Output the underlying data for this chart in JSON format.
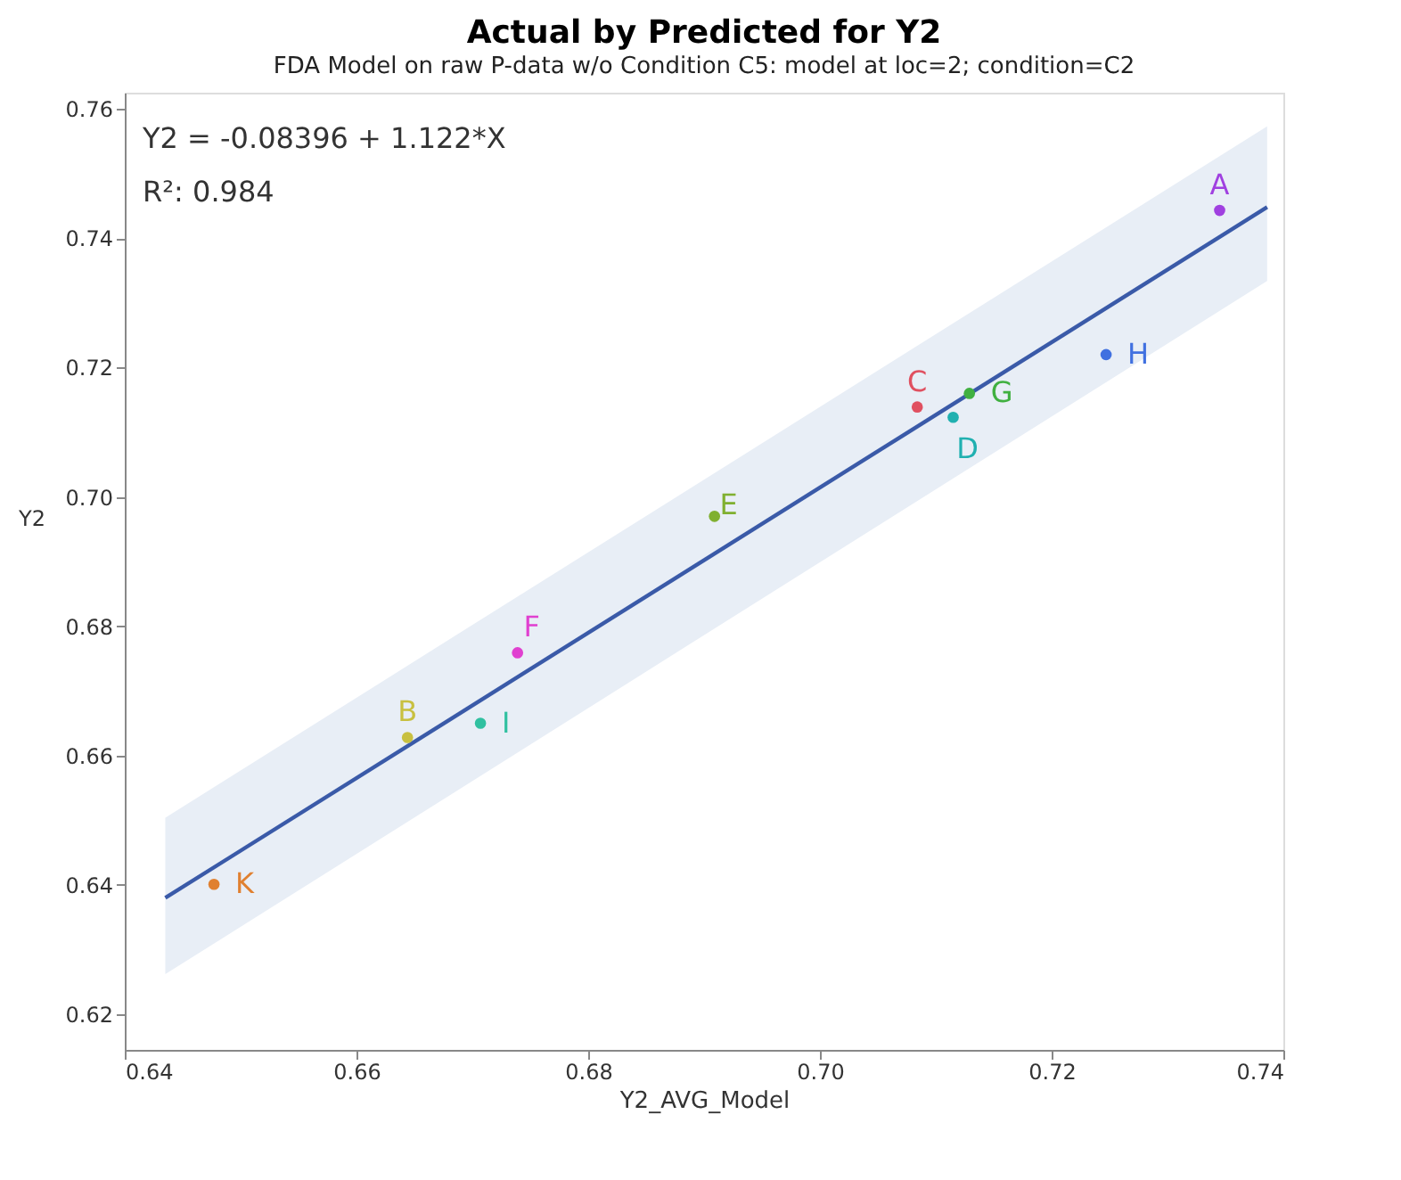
{
  "chart_data": {
    "type": "scatter",
    "title": "Actual by Predicted for Y2",
    "subtitle": "FDA Model on raw P-data w/o Condition C5: model at loc=2; condition=C2",
    "xlabel": "Y2_AVG_Model",
    "ylabel": "Y2",
    "annotations": [
      "Y2 = -0.08396 + 1.122*X",
      "R²: 0.984"
    ],
    "xlim": [
      0.64,
      0.74
    ],
    "ylim": [
      0.6145,
      0.7625
    ],
    "xticks": [
      0.64,
      0.66,
      0.68,
      {
        "value": 0.7,
        "label": "0.70"
      },
      0.72,
      0.74
    ],
    "yticks": [
      0.62,
      0.64,
      0.66,
      0.68,
      {
        "value": 0.7,
        "label": "0.70"
      },
      0.72,
      0.74,
      0.76
    ],
    "grid": false,
    "marker": "circle",
    "series": [
      {
        "type": "line",
        "marker": "none",
        "color": "#3a5aa8",
        "x": [
          0.6435,
          0.7386
        ],
        "values": [
          0.638,
          0.7448
        ],
        "lower": [
          0.6262,
          0.7334
        ],
        "upper": [
          0.6504,
          0.7573
        ]
      },
      {
        "name": "A",
        "color": "#a040e0",
        "x": [
          0.7345
        ],
        "values": [
          0.7443
        ]
      },
      {
        "name": "B",
        "color": "#c8c040",
        "x": [
          0.6644
        ],
        "values": [
          0.6628
        ]
      },
      {
        "name": "C",
        "color": "#e05060",
        "x": [
          0.7084
        ],
        "values": [
          0.7139
        ]
      },
      {
        "name": "D",
        "color": "#20b0b0",
        "x": [
          0.7115
        ],
        "values": [
          0.7123
        ]
      },
      {
        "name": "E",
        "color": "#80b030",
        "x": [
          0.6909
        ],
        "values": [
          0.697
        ]
      },
      {
        "name": "F",
        "color": "#e040d0",
        "x": [
          0.6739
        ],
        "values": [
          0.6759
        ]
      },
      {
        "name": "G",
        "color": "#40b040",
        "x": [
          0.7129
        ],
        "values": [
          0.716
        ]
      },
      {
        "name": "H",
        "color": "#4070e0",
        "x": [
          0.7247
        ],
        "values": [
          0.722
        ]
      },
      {
        "name": "I",
        "color": "#30c0a0",
        "x": [
          0.6707
        ],
        "values": [
          0.665
        ]
      },
      {
        "name": "K",
        "color": "#e08030",
        "x": [
          0.6477
        ],
        "values": [
          0.6401
        ]
      }
    ]
  }
}
